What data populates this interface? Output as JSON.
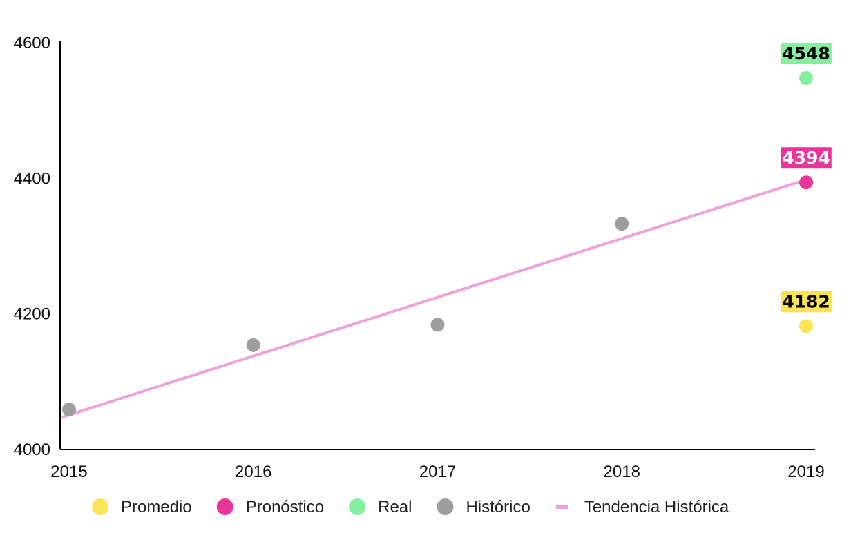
{
  "chart_data": {
    "type": "scatter",
    "x_ticks": [
      "2015",
      "2016",
      "2017",
      "2018",
      "2019"
    ],
    "y_ticks": [
      "4000",
      "4200",
      "4400",
      "4600"
    ],
    "xlim": [
      2015,
      2019
    ],
    "ylim": [
      4000,
      4600
    ],
    "grid": false,
    "legend_position": "bottom",
    "series": [
      {
        "name": "Promedio",
        "color": "#fde456",
        "points": [
          {
            "x": 2019,
            "y": 4182
          }
        ]
      },
      {
        "name": "Pronóstico",
        "color": "#e8359a",
        "points": [
          {
            "x": 2019,
            "y": 4394
          }
        ]
      },
      {
        "name": "Real",
        "color": "#86ef9f",
        "points": [
          {
            "x": 2019,
            "y": 4548
          }
        ]
      },
      {
        "name": "Histórico",
        "color": "#9e9e9e",
        "points": [
          {
            "x": 2015,
            "y": 4059
          },
          {
            "x": 2016,
            "y": 4154
          },
          {
            "x": 2017,
            "y": 4184
          },
          {
            "x": 2018,
            "y": 4333
          }
        ]
      }
    ],
    "trendline": {
      "name": "Tendencia Histórica",
      "color": "#efa2d9",
      "start": {
        "x": 2015,
        "y": 4051
      },
      "end": {
        "x": 2019,
        "y": 4398
      }
    },
    "callouts": [
      {
        "text": "4548",
        "x": 2019,
        "y": 4548,
        "bg": "#86ef9f",
        "fg": "#000000"
      },
      {
        "text": "4394",
        "x": 2019,
        "y": 4394,
        "bg": "#e8359a",
        "fg": "#ffffff"
      },
      {
        "text": "4182",
        "x": 2019,
        "y": 4182,
        "bg": "#fde456",
        "fg": "#000000"
      }
    ]
  }
}
